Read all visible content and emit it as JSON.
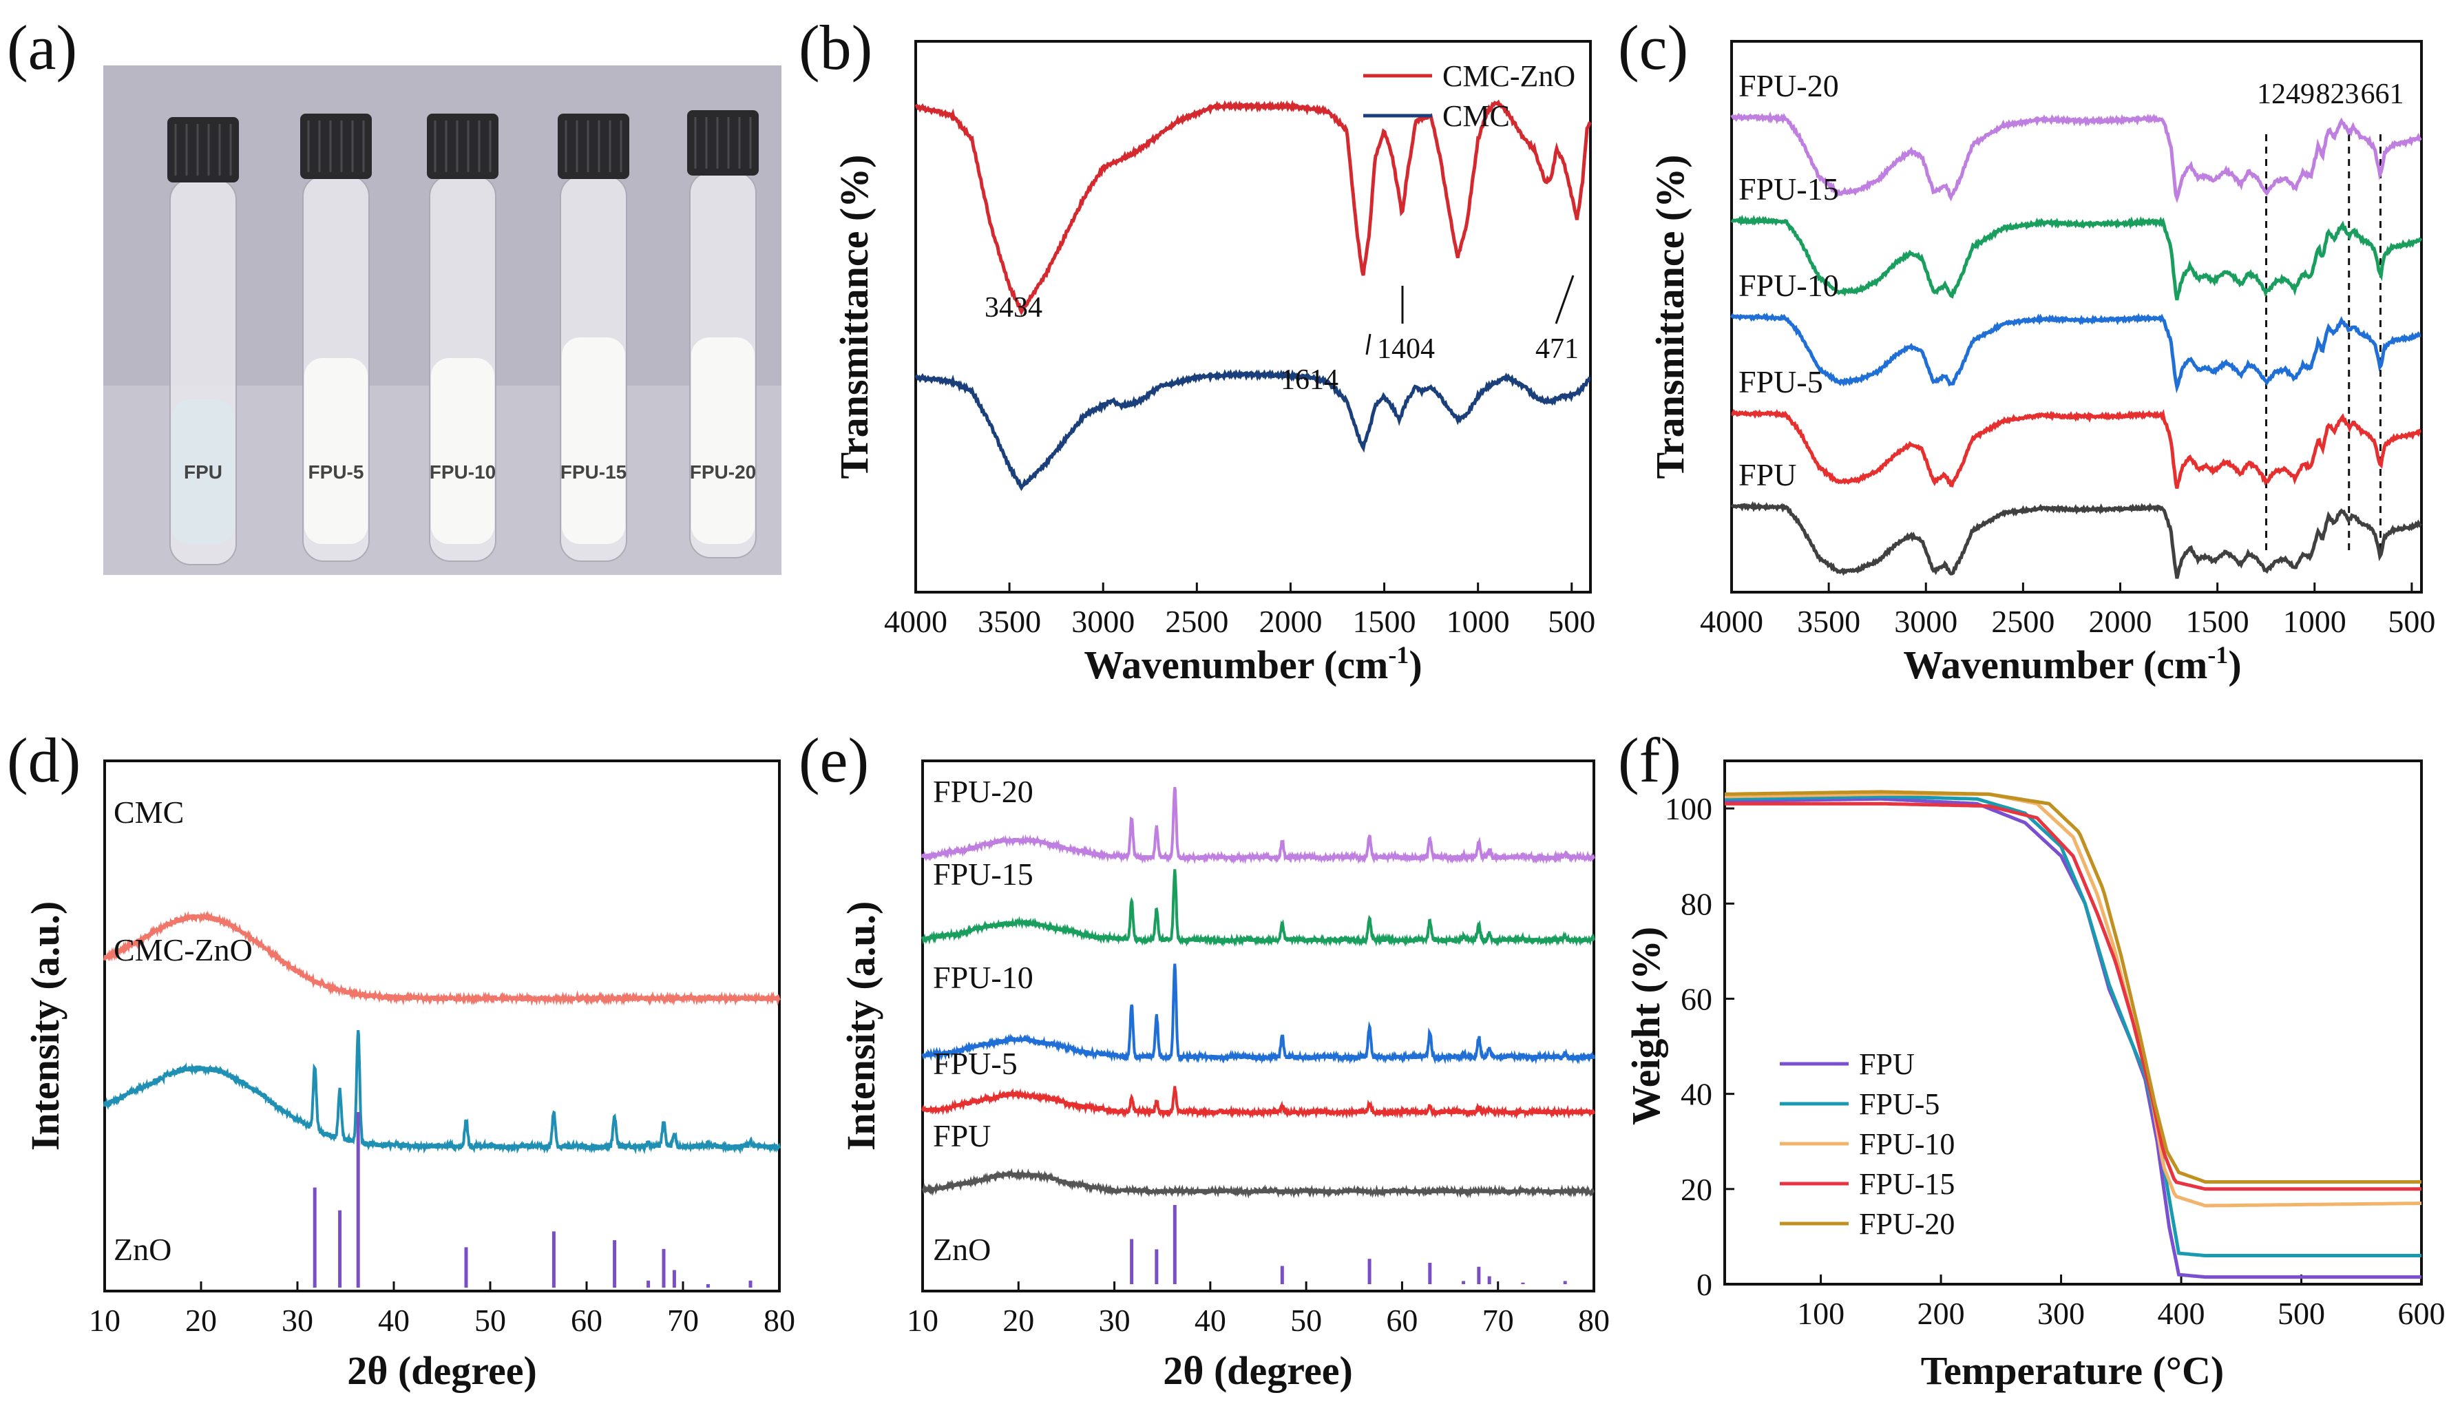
{
  "panel_labels": [
    "(a)",
    "(b)",
    "(c)",
    "(d)",
    "(e)",
    "(f)"
  ],
  "chart_data": [
    {
      "panel": "(a)",
      "type": "photo",
      "vials": [
        {
          "label": "FPU",
          "liquid": "clear"
        },
        {
          "label": "FPU-5",
          "liquid": "white"
        },
        {
          "label": "FPU-10",
          "liquid": "white"
        },
        {
          "label": "FPU-15",
          "liquid": "white"
        },
        {
          "label": "FPU-20",
          "liquid": "white"
        }
      ]
    },
    {
      "panel": "(b)",
      "type": "line",
      "xlabel": "Wavenumber (cm",
      "xlabel_sup": "-1",
      "xlabel_end": ")",
      "ylabel": "Transmittance (%)",
      "xlim": [
        4000,
        400
      ],
      "xticks": [
        4000,
        3500,
        3000,
        2500,
        2000,
        1500,
        1000,
        500
      ],
      "series": [
        {
          "name": "CMC-ZnO",
          "color": "#d42a2f",
          "points": [
            [
              4000,
              95
            ],
            [
              3800,
              93
            ],
            [
              3700,
              88
            ],
            [
              3600,
              70
            ],
            [
              3500,
              57
            ],
            [
              3434,
              52
            ],
            [
              3300,
              60
            ],
            [
              3100,
              76
            ],
            [
              3000,
              82
            ],
            [
              2900,
              84
            ],
            [
              2800,
              86
            ],
            [
              2600,
              92
            ],
            [
              2400,
              95
            ],
            [
              2200,
              95
            ],
            [
              2000,
              95
            ],
            [
              1800,
              94
            ],
            [
              1700,
              90
            ],
            [
              1650,
              70
            ],
            [
              1614,
              59
            ],
            [
              1580,
              68
            ],
            [
              1550,
              84
            ],
            [
              1500,
              90
            ],
            [
              1460,
              85
            ],
            [
              1420,
              76
            ],
            [
              1404,
              72
            ],
            [
              1380,
              80
            ],
            [
              1330,
              92
            ],
            [
              1250,
              93
            ],
            [
              1200,
              84
            ],
            [
              1150,
              72
            ],
            [
              1110,
              63
            ],
            [
              1060,
              70
            ],
            [
              1000,
              88
            ],
            [
              950,
              94
            ],
            [
              900,
              96
            ],
            [
              850,
              94
            ],
            [
              800,
              91
            ],
            [
              750,
              88
            ],
            [
              700,
              86
            ],
            [
              640,
              79
            ],
            [
              610,
              80
            ],
            [
              580,
              86
            ],
            [
              540,
              83
            ],
            [
              500,
              76
            ],
            [
              471,
              71
            ],
            [
              440,
              80
            ],
            [
              420,
              90
            ],
            [
              400,
              92
            ]
          ]
        },
        {
          "name": "CMC",
          "color": "#1a3f7a",
          "points": [
            [
              4000,
              38
            ],
            [
              3800,
              37
            ],
            [
              3700,
              35
            ],
            [
              3600,
              28
            ],
            [
              3500,
              19
            ],
            [
              3434,
              15
            ],
            [
              3300,
              20
            ],
            [
              3100,
              30
            ],
            [
              3000,
              32
            ],
            [
              2950,
              33
            ],
            [
              2900,
              32
            ],
            [
              2800,
              33
            ],
            [
              2700,
              36
            ],
            [
              2500,
              38
            ],
            [
              2300,
              38.5
            ],
            [
              2100,
              38.5
            ],
            [
              1900,
              38
            ],
            [
              1800,
              37
            ],
            [
              1700,
              33
            ],
            [
              1650,
              27
            ],
            [
              1614,
              23
            ],
            [
              1580,
              27
            ],
            [
              1550,
              32
            ],
            [
              1500,
              34
            ],
            [
              1460,
              32
            ],
            [
              1420,
              29
            ],
            [
              1380,
              33
            ],
            [
              1330,
              36
            ],
            [
              1300,
              35
            ],
            [
              1250,
              36
            ],
            [
              1200,
              34
            ],
            [
              1150,
              31
            ],
            [
              1110,
              29
            ],
            [
              1060,
              30
            ],
            [
              1000,
              34
            ],
            [
              950,
              36
            ],
            [
              900,
              37
            ],
            [
              850,
              38
            ],
            [
              800,
              37
            ],
            [
              750,
              36
            ],
            [
              700,
              34
            ],
            [
              650,
              33
            ],
            [
              600,
              33
            ],
            [
              550,
              34
            ],
            [
              500,
              34
            ],
            [
              460,
              35
            ],
            [
              420,
              37
            ],
            [
              400,
              38
            ]
          ]
        }
      ],
      "legend": [
        "CMC-ZnO",
        "CMC"
      ],
      "annotations": [
        {
          "text": "3434"
        },
        {
          "text": "1614"
        },
        {
          "text": "1404"
        },
        {
          "text": "471"
        }
      ]
    },
    {
      "panel": "(c)",
      "type": "line",
      "xlabel": "Wavenumber (cm",
      "xlabel_sup": "-1",
      "xlabel_end": ")",
      "ylabel": "Transmittance (%)",
      "xlim": [
        4000,
        450
      ],
      "xticks": [
        4000,
        3500,
        3000,
        2500,
        2000,
        1500,
        1000,
        500
      ],
      "reference_lines": [
        1249,
        823,
        661
      ],
      "series": [
        {
          "name": "FPU-20",
          "color": "#bf7fe0"
        },
        {
          "name": "FPU-15",
          "color": "#1a9e5e"
        },
        {
          "name": "FPU-10",
          "color": "#1f6fd6"
        },
        {
          "name": "FPU-5",
          "color": "#e63030"
        },
        {
          "name": "FPU",
          "color": "#404040"
        }
      ]
    },
    {
      "panel": "(d)",
      "type": "line",
      "xlabel": "2θ (degree)",
      "ylabel": "Intensity (a.u.)",
      "xlim": [
        10,
        80
      ],
      "xticks": [
        10,
        20,
        30,
        40,
        50,
        60,
        70,
        80
      ],
      "series": [
        {
          "name": "CMC",
          "color": "#f0766a"
        },
        {
          "name": "CMC-ZnO",
          "color": "#1f8fb3"
        }
      ],
      "reference": {
        "name": "ZnO",
        "color": "#7a4fc4",
        "peaks": [
          [
            31.8,
            57
          ],
          [
            34.4,
            44
          ],
          [
            36.3,
            100
          ],
          [
            47.5,
            23
          ],
          [
            56.6,
            32
          ],
          [
            62.9,
            27
          ],
          [
            66.4,
            4
          ],
          [
            68.0,
            22
          ],
          [
            69.1,
            10
          ],
          [
            72.6,
            2
          ],
          [
            77.0,
            4
          ]
        ]
      }
    },
    {
      "panel": "(e)",
      "type": "line",
      "xlabel": "2θ (degree)",
      "ylabel": "Intensity (a.u.)",
      "xlim": [
        10,
        80
      ],
      "xticks": [
        10,
        20,
        30,
        40,
        50,
        60,
        70,
        80
      ],
      "series": [
        {
          "name": "FPU-20",
          "color": "#bf7fe0",
          "peak_scale": 1.0
        },
        {
          "name": "FPU-15",
          "color": "#1a9e5e",
          "peak_scale": 1.0
        },
        {
          "name": "FPU-10",
          "color": "#1f6fd6",
          "peak_scale": 1.35
        },
        {
          "name": "FPU-5",
          "color": "#e63030",
          "peak_scale": 0.35
        },
        {
          "name": "FPU",
          "color": "#555555",
          "peak_scale": 0
        }
      ],
      "reference": {
        "name": "ZnO",
        "color": "#7a4fc4"
      }
    },
    {
      "panel": "(f)",
      "type": "line",
      "xlabel": "Temperature (°C)",
      "ylabel": "Weight (%)",
      "xlim": [
        20,
        600
      ],
      "ylim": [
        0,
        110
      ],
      "xticks": [
        100,
        200,
        300,
        400,
        500,
        600
      ],
      "yticks": [
        0,
        20,
        40,
        60,
        80,
        100
      ],
      "series": [
        {
          "name": "FPU",
          "color": "#7a4fd0",
          "points": [
            [
              20,
              101.5
            ],
            [
              150,
              102
            ],
            [
              230,
              101
            ],
            [
              270,
              97
            ],
            [
              300,
              90
            ],
            [
              320,
              80
            ],
            [
              340,
              62
            ],
            [
              360,
              50
            ],
            [
              370,
              43
            ],
            [
              380,
              30
            ],
            [
              390,
              12
            ],
            [
              398,
              2
            ],
            [
              420,
              1.5
            ],
            [
              600,
              1.5
            ]
          ]
        },
        {
          "name": "FPU-5",
          "color": "#1a9ab0",
          "points": [
            [
              20,
              102
            ],
            [
              150,
              102.5
            ],
            [
              230,
              102
            ],
            [
              270,
              99
            ],
            [
              300,
              92
            ],
            [
              320,
              80
            ],
            [
              340,
              63
            ],
            [
              360,
              50
            ],
            [
              370,
              44
            ],
            [
              380,
              33
            ],
            [
              390,
              18
            ],
            [
              398,
              6.5
            ],
            [
              420,
              6
            ],
            [
              600,
              6
            ]
          ]
        },
        {
          "name": "FPU-10",
          "color": "#f2b36b",
          "points": [
            [
              20,
              102.5
            ],
            [
              150,
              103
            ],
            [
              240,
              103
            ],
            [
              280,
              101
            ],
            [
              310,
              94
            ],
            [
              330,
              82
            ],
            [
              345,
              70
            ],
            [
              360,
              55
            ],
            [
              375,
              40
            ],
            [
              385,
              25
            ],
            [
              395,
              18.5
            ],
            [
              420,
              16.5
            ],
            [
              600,
              17
            ]
          ]
        },
        {
          "name": "FPU-15",
          "color": "#e63540",
          "points": [
            [
              20,
              101
            ],
            [
              150,
              101
            ],
            [
              240,
              100.5
            ],
            [
              280,
              98
            ],
            [
              310,
              90
            ],
            [
              330,
              78
            ],
            [
              345,
              68
            ],
            [
              360,
              55
            ],
            [
              375,
              40
            ],
            [
              385,
              28
            ],
            [
              395,
              21.5
            ],
            [
              420,
              20
            ],
            [
              600,
              20
            ]
          ]
        },
        {
          "name": "FPU-20",
          "color": "#c09020",
          "points": [
            [
              20,
              103
            ],
            [
              150,
              103.5
            ],
            [
              240,
              103
            ],
            [
              290,
              101
            ],
            [
              315,
              95
            ],
            [
              335,
              83
            ],
            [
              350,
              69
            ],
            [
              365,
              53
            ],
            [
              378,
              38
            ],
            [
              388,
              28
            ],
            [
              398,
              23.5
            ],
            [
              420,
              21.5
            ],
            [
              600,
              21.5
            ]
          ]
        }
      ],
      "legend": [
        "FPU",
        "FPU-5",
        "FPU-10",
        "FPU-15",
        "FPU-20"
      ]
    }
  ]
}
